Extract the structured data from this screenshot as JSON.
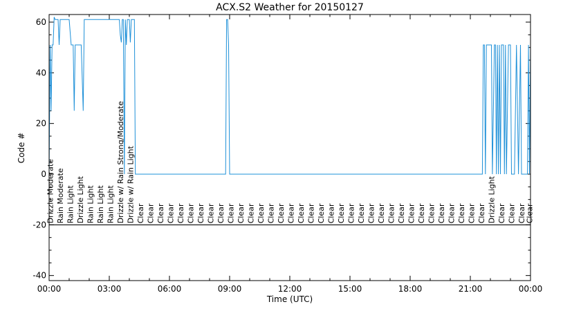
{
  "chart_data": {
    "type": "line",
    "title": "ACX.S2 Weather for 20150127",
    "xlabel": "Time (UTC)",
    "ylabel": "Code #",
    "xlim": [
      0,
      24
    ],
    "ylim": [
      -42,
      63
    ],
    "grid": false,
    "x_ticks": [
      {
        "value": 0,
        "label": "00:00"
      },
      {
        "value": 3,
        "label": "03:00"
      },
      {
        "value": 6,
        "label": "06:00"
      },
      {
        "value": 9,
        "label": "09:00"
      },
      {
        "value": 12,
        "label": "12:00"
      },
      {
        "value": 15,
        "label": "15:00"
      },
      {
        "value": 18,
        "label": "18:00"
      },
      {
        "value": 21,
        "label": "21:00"
      },
      {
        "value": 24,
        "label": "00:00"
      }
    ],
    "y_ticks": [
      {
        "value": -40,
        "label": "-40"
      },
      {
        "value": -20,
        "label": "-20"
      },
      {
        "value": 0,
        "label": "0"
      },
      {
        "value": 20,
        "label": "20"
      },
      {
        "value": 40,
        "label": "40"
      },
      {
        "value": 60,
        "label": "60"
      }
    ],
    "reference_line_y": -20,
    "series": [
      {
        "color": "#1e90d8",
        "x": [
          0.0,
          0.05,
          0.1,
          0.15,
          0.2,
          0.25,
          0.3,
          0.35,
          0.4,
          0.45,
          0.5,
          0.55,
          0.6,
          0.7,
          0.8,
          0.9,
          1.0,
          1.1,
          1.2,
          1.25,
          1.3,
          1.35,
          1.4,
          1.5,
          1.6,
          1.7,
          1.75,
          1.8,
          1.85,
          1.9,
          2.0,
          2.2,
          2.4,
          2.6,
          2.8,
          3.0,
          3.2,
          3.4,
          3.5,
          3.55,
          3.6,
          3.65,
          3.7,
          3.75,
          3.8,
          3.85,
          3.9,
          3.95,
          4.0,
          4.05,
          4.1,
          4.15,
          4.2,
          4.25,
          4.3,
          4.35,
          4.4,
          6.0,
          8.0,
          8.8,
          8.85,
          8.9,
          8.95,
          9.0,
          9.05,
          9.1,
          12.0,
          15.0,
          18.0,
          21.0,
          21.6,
          21.65,
          21.7,
          21.75,
          21.8,
          21.9,
          22.0,
          22.05,
          22.1,
          22.2,
          22.25,
          22.3,
          22.35,
          22.4,
          22.45,
          22.5,
          22.55,
          22.6,
          22.65,
          22.7,
          22.75,
          22.8,
          22.9,
          23.0,
          23.05,
          23.1,
          23.2,
          23.3,
          23.4,
          23.5,
          23.55,
          23.6,
          23.7,
          23.8,
          23.85,
          23.9,
          23.95,
          24.0
        ],
        "y": [
          0,
          51,
          25,
          51,
          51,
          62,
          61,
          61,
          61,
          61,
          51,
          61,
          61,
          61,
          61,
          61,
          61,
          51,
          51,
          25,
          51,
          51,
          51,
          51,
          51,
          25,
          61,
          61,
          61,
          61,
          61,
          61,
          61,
          61,
          61,
          61,
          61,
          61,
          61,
          55,
          52,
          61,
          61,
          0,
          61,
          51,
          61,
          61,
          61,
          52,
          61,
          61,
          61,
          61,
          0,
          0,
          0,
          0,
          0,
          0,
          61,
          61,
          51,
          0,
          0,
          0,
          0,
          0,
          0,
          0,
          0,
          51,
          51,
          0,
          51,
          51,
          51,
          51,
          0,
          51,
          51,
          0,
          51,
          0,
          51,
          0,
          51,
          51,
          51,
          0,
          51,
          0,
          51,
          51,
          0,
          0,
          0,
          51,
          0,
          51,
          0,
          0,
          0,
          0,
          0,
          51,
          0,
          51
        ]
      }
    ],
    "weather_labels": [
      {
        "x": 0.05,
        "text": "Drizzle Moderate"
      },
      {
        "x": 0.55,
        "text": "Rain Moderate"
      },
      {
        "x": 1.05,
        "text": "Rain Light"
      },
      {
        "x": 1.55,
        "text": "Drizzle Light"
      },
      {
        "x": 2.05,
        "text": "Rain Light"
      },
      {
        "x": 2.55,
        "text": "Rain Light"
      },
      {
        "x": 3.05,
        "text": "Rain Light"
      },
      {
        "x": 3.55,
        "text": "Drizzle w/ Rain Strong/Moderate"
      },
      {
        "x": 4.05,
        "text": "Drizzle w/ Rain Light"
      },
      {
        "x": 4.55,
        "text": "Clear"
      },
      {
        "x": 5.05,
        "text": "Clear"
      },
      {
        "x": 5.55,
        "text": "Clear"
      },
      {
        "x": 6.05,
        "text": "Clear"
      },
      {
        "x": 6.55,
        "text": "Clear"
      },
      {
        "x": 7.05,
        "text": "Clear"
      },
      {
        "x": 7.55,
        "text": "Clear"
      },
      {
        "x": 8.05,
        "text": "Clear"
      },
      {
        "x": 8.55,
        "text": "Clear"
      },
      {
        "x": 9.05,
        "text": "Clear"
      },
      {
        "x": 9.55,
        "text": "Clear"
      },
      {
        "x": 10.05,
        "text": "Clear"
      },
      {
        "x": 10.55,
        "text": "Clear"
      },
      {
        "x": 11.05,
        "text": "Clear"
      },
      {
        "x": 11.55,
        "text": "Clear"
      },
      {
        "x": 12.05,
        "text": "Clear"
      },
      {
        "x": 12.55,
        "text": "Clear"
      },
      {
        "x": 13.05,
        "text": "Clear"
      },
      {
        "x": 13.55,
        "text": "Clear"
      },
      {
        "x": 14.05,
        "text": "Clear"
      },
      {
        "x": 14.55,
        "text": "Clear"
      },
      {
        "x": 15.05,
        "text": "Clear"
      },
      {
        "x": 15.55,
        "text": "Clear"
      },
      {
        "x": 16.05,
        "text": "Clear"
      },
      {
        "x": 16.55,
        "text": "Clear"
      },
      {
        "x": 17.05,
        "text": "Clear"
      },
      {
        "x": 17.55,
        "text": "Clear"
      },
      {
        "x": 18.05,
        "text": "Clear"
      },
      {
        "x": 18.55,
        "text": "Clear"
      },
      {
        "x": 19.05,
        "text": "Clear"
      },
      {
        "x": 19.55,
        "text": "Clear"
      },
      {
        "x": 20.05,
        "text": "Clear"
      },
      {
        "x": 20.55,
        "text": "Clear"
      },
      {
        "x": 21.05,
        "text": "Clear"
      },
      {
        "x": 21.55,
        "text": "Clear"
      },
      {
        "x": 22.05,
        "text": "Drizzle Light"
      },
      {
        "x": 22.55,
        "text": "Clear"
      },
      {
        "x": 23.05,
        "text": "Clear"
      },
      {
        "x": 23.55,
        "text": "Clear"
      },
      {
        "x": 23.95,
        "text": "Clear"
      }
    ]
  }
}
